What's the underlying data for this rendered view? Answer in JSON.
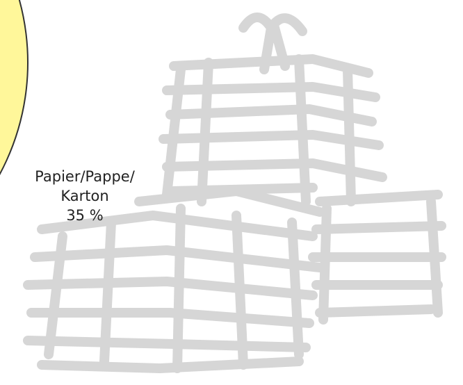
{
  "chart_data": {
    "type": "pie",
    "categories": [
      "Papier/Pappe/ Karton"
    ],
    "values": [
      35
    ],
    "value_labels": [
      "35 %"
    ],
    "colors": [
      "#fff79a"
    ]
  }
}
